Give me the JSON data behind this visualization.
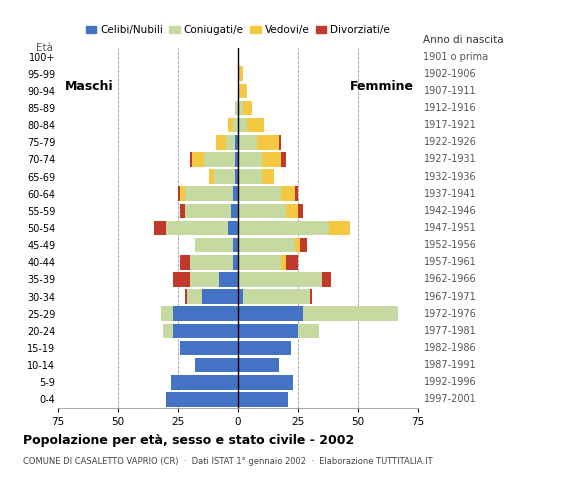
{
  "age_groups": [
    "0-4",
    "5-9",
    "10-14",
    "15-19",
    "20-24",
    "25-29",
    "30-34",
    "35-39",
    "40-44",
    "45-49",
    "50-54",
    "55-59",
    "60-64",
    "65-69",
    "70-74",
    "75-79",
    "80-84",
    "85-89",
    "90-94",
    "95-99",
    "100+"
  ],
  "birth_years": [
    "1997-2001",
    "1992-1996",
    "1987-1991",
    "1982-1986",
    "1977-1981",
    "1972-1976",
    "1967-1971",
    "1962-1966",
    "1957-1961",
    "1952-1956",
    "1947-1951",
    "1942-1946",
    "1937-1941",
    "1932-1936",
    "1927-1931",
    "1922-1926",
    "1917-1921",
    "1912-1916",
    "1907-1911",
    "1902-1906",
    "1901 o prima"
  ],
  "males": {
    "celibi": [
      30,
      28,
      18,
      24,
      27,
      27,
      15,
      8,
      2,
      2,
      4,
      3,
      2,
      1,
      1,
      1,
      0,
      0,
      0,
      0,
      0
    ],
    "coniugati": [
      0,
      0,
      0,
      0,
      4,
      5,
      6,
      12,
      18,
      16,
      26,
      19,
      20,
      9,
      13,
      4,
      2,
      1,
      0,
      0,
      0
    ],
    "vedovi": [
      0,
      0,
      0,
      0,
      0,
      0,
      0,
      0,
      0,
      0,
      0,
      0,
      2,
      2,
      5,
      4,
      2,
      0,
      0,
      0,
      0
    ],
    "divorziati": [
      0,
      0,
      0,
      0,
      0,
      0,
      1,
      7,
      4,
      0,
      5,
      2,
      1,
      0,
      1,
      0,
      0,
      0,
      0,
      0,
      0
    ]
  },
  "females": {
    "nubili": [
      21,
      23,
      17,
      22,
      25,
      27,
      2,
      0,
      0,
      0,
      0,
      0,
      0,
      0,
      0,
      0,
      0,
      0,
      0,
      0,
      0
    ],
    "coniugate": [
      0,
      0,
      0,
      0,
      9,
      40,
      28,
      35,
      18,
      24,
      38,
      20,
      18,
      10,
      10,
      8,
      4,
      2,
      1,
      0,
      0
    ],
    "vedove": [
      0,
      0,
      0,
      0,
      0,
      0,
      0,
      0,
      2,
      2,
      9,
      5,
      6,
      5,
      8,
      9,
      7,
      4,
      3,
      2,
      0
    ],
    "divorziate": [
      0,
      0,
      0,
      0,
      0,
      0,
      1,
      4,
      5,
      3,
      0,
      2,
      1,
      0,
      2,
      1,
      0,
      0,
      0,
      0,
      0
    ]
  },
  "colors": {
    "celibi": "#4472c4",
    "coniugati": "#c5d9a0",
    "vedovi": "#f5c842",
    "divorziati": "#c0392b"
  },
  "xlim": 75,
  "title": "Popolazione per età, sesso e stato civile - 2002",
  "subtitle": "COMUNE DI CASALETTO VAPRIO (CR)  ·  Dati ISTAT 1° gennaio 2002  ·  Elaborazione TUTTITALIA.IT",
  "legend_labels": [
    "Celibi/Nubili",
    "Coniugati/e",
    "Vedovi/e",
    "Divorziati/e"
  ],
  "background_color": "#ffffff"
}
